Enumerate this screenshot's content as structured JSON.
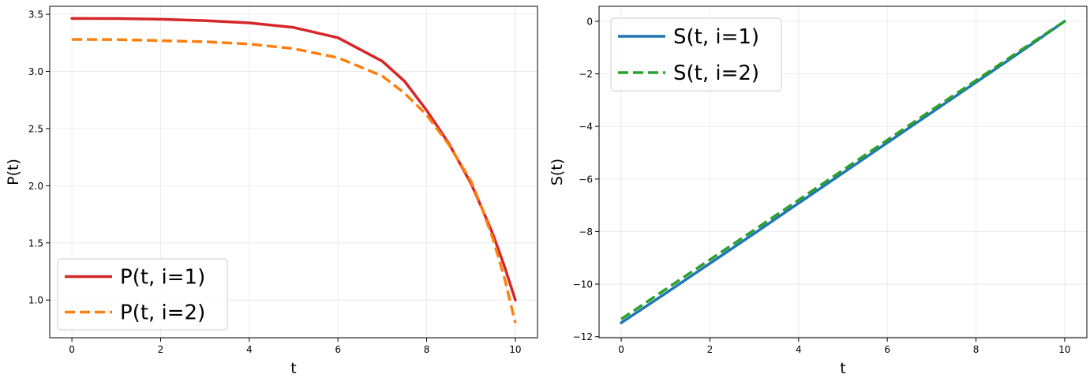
{
  "chart_data": [
    {
      "type": "line",
      "title": "",
      "xlabel": "t",
      "ylabel": "P(t)",
      "xlim": [
        -0.5,
        10.5
      ],
      "ylim": [
        0.67,
        3.57
      ],
      "xticks": [
        0,
        2,
        4,
        6,
        8,
        10
      ],
      "yticks": [
        1.0,
        1.5,
        2.0,
        2.5,
        3.0,
        3.5
      ],
      "ytick_labels": [
        "1.0",
        "1.5",
        "2.0",
        "2.5",
        "3.0",
        "3.5"
      ],
      "grid": true,
      "legend_position": "lower-left",
      "x": [
        0,
        1,
        2,
        3,
        4,
        5,
        6,
        7,
        7.5,
        8,
        8.5,
        9,
        9.25,
        9.5,
        9.75,
        10
      ],
      "series": [
        {
          "name": "P(t, i=1)",
          "color": "#d62728",
          "style": "solid",
          "values": [
            3.464,
            3.463,
            3.457,
            3.445,
            3.425,
            3.385,
            3.295,
            3.09,
            2.915,
            2.66,
            2.37,
            2.02,
            1.8,
            1.57,
            1.3,
            1.0
          ]
        },
        {
          "name": "P(t, i=2)",
          "color": "#ff7f0e",
          "style": "dashed",
          "values": [
            3.28,
            3.279,
            3.27,
            3.26,
            3.24,
            3.2,
            3.12,
            2.96,
            2.81,
            2.62,
            2.36,
            2.04,
            1.8,
            1.53,
            1.2,
            0.8
          ]
        }
      ]
    },
    {
      "type": "line",
      "title": "",
      "xlabel": "t",
      "ylabel": "S(t)",
      "xlim": [
        -0.5,
        10.5
      ],
      "ylim": [
        -12.04,
        0.57
      ],
      "xticks": [
        0,
        2,
        4,
        6,
        8,
        10
      ],
      "yticks": [
        -12,
        -10,
        -8,
        -6,
        -4,
        -2,
        0
      ],
      "ytick_labels": [
        "−12",
        "−10",
        "−8",
        "−6",
        "−4",
        "−2",
        "0"
      ],
      "grid": true,
      "legend_position": "upper-left",
      "x": [
        0,
        1,
        2,
        3,
        4,
        5,
        6,
        7,
        8,
        9,
        10
      ],
      "series": [
        {
          "name": "S(t, i=1)",
          "color": "#1f77b4",
          "style": "solid",
          "values": [
            -11.47,
            -10.35,
            -9.21,
            -8.07,
            -6.92,
            -5.77,
            -4.62,
            -3.47,
            -2.32,
            -1.17,
            0.0
          ]
        },
        {
          "name": "S(t, i=2)",
          "color": "#2ca02c",
          "style": "dashed",
          "values": [
            -11.33,
            -10.2,
            -9.07,
            -7.94,
            -6.8,
            -5.66,
            -4.52,
            -3.38,
            -2.25,
            -1.11,
            0.0
          ]
        }
      ]
    }
  ]
}
